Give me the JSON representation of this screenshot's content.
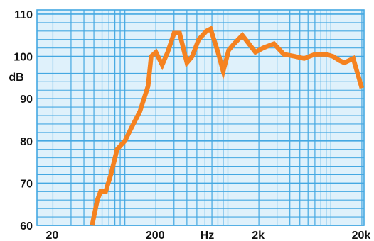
{
  "chart_data": {
    "type": "line",
    "x_scale": "log",
    "y_scale": "linear",
    "xlim": [
      14,
      21000
    ],
    "ylim": [
      60,
      111
    ],
    "ylabel": "dB",
    "xlabel": "Hz",
    "grid": true,
    "y_ticks": [
      {
        "value": 60,
        "label": "60"
      },
      {
        "value": 70,
        "label": "70"
      },
      {
        "value": 80,
        "label": "80"
      },
      {
        "value": 90,
        "label": "90"
      },
      {
        "value": 100,
        "label": "100"
      },
      {
        "value": 110,
        "label": "110"
      }
    ],
    "x_ticks": [
      {
        "value": 20,
        "label": "20"
      },
      {
        "value": 200,
        "label": "200"
      },
      {
        "value": 2000,
        "label": "2k"
      },
      {
        "value": 20000,
        "label": "20k"
      }
    ],
    "colors": {
      "grid": "#44a8e2",
      "background": "#dff1fb",
      "line": "#f58220"
    },
    "series": [
      {
        "x": [
          48,
          54,
          58,
          65,
          73,
          84,
          100,
          115,
          140,
          168,
          180,
          200,
          230,
          260,
          300,
          340,
          400,
          450,
          520,
          620,
          680,
          800,
          900,
          1020,
          1150,
          1380,
          1600,
          1850,
          2200,
          2800,
          3500,
          4500,
          5500,
          7000,
          9000,
          10500,
          12200,
          13500,
          16500,
          20000
        ],
        "y": [
          60,
          66,
          68,
          68,
          72,
          78,
          80,
          83,
          87,
          93,
          100,
          101,
          98,
          101,
          105.5,
          105.5,
          98.5,
          100,
          104,
          106,
          106.5,
          101,
          96.5,
          101.5,
          103,
          105,
          103,
          101,
          102,
          103,
          100.5,
          100,
          99.5,
          100.5,
          100.5,
          100,
          99,
          98.5,
          99.5,
          92.5
        ]
      }
    ]
  }
}
